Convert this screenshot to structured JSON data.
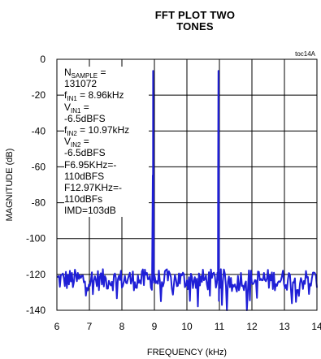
{
  "chart_data": {
    "type": "line",
    "title_line1": "FFT PLOT TWO",
    "title_line2": "TONES",
    "figure_note": "toc14A",
    "xlabel": "FREQUENCY (kHz)",
    "ylabel": "MAGNITUDE (dB)",
    "xlim": [
      6,
      14
    ],
    "ylim": [
      -140,
      0
    ],
    "x_ticks": [
      "6",
      "7",
      "8",
      "9",
      "10",
      "11",
      "12",
      "13",
      "14"
    ],
    "y_ticks": [
      "0",
      "-20",
      "-40",
      "-60",
      "-80",
      "-100",
      "-120",
      "-140"
    ],
    "grid": true,
    "line_color": "#1f1fd6",
    "noise_floor_db": -123,
    "series": [
      {
        "peaks": [
          {
            "x": 8.96,
            "y": -6.5
          },
          {
            "x": 10.97,
            "y": -6.5
          }
        ]
      }
    ],
    "annotation": {
      "nsample_label": "N",
      "nsample_sub": "SAMPLE",
      "nsample_eq": " =",
      "nsample_value": "131072",
      "fin1_label": "f",
      "fin1_sub": "IN1",
      "fin1_value": " = 8.96kHz",
      "vin1_label": "V",
      "vin1_sub": "IN1",
      "vin1_eq": " =",
      "vin1_value": "-6.5dBFS",
      "fin2_label": "f",
      "fin2_sub": "IN2",
      "fin2_value": " = 10.97kHz",
      "vin2_label": "V",
      "vin2_sub": "IN2",
      "vin2_eq": " =",
      "vin2_value": "-6.5dBFS",
      "f1_line1": "F6.95KHz=-",
      "f1_line2": "110dBFS",
      "f2_line1": "F12.97KHz=-",
      "f2_line2": "110dBFs",
      "imd": "IMD=103dB"
    }
  }
}
